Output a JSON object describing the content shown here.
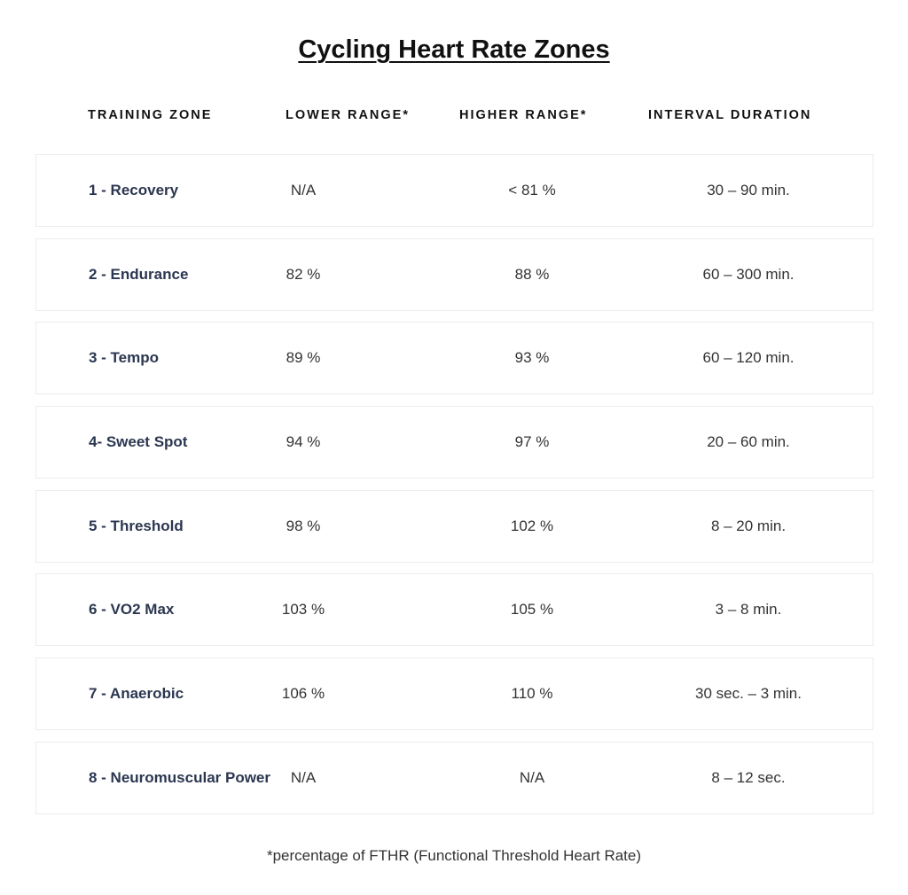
{
  "title": "Cycling Heart Rate Zones",
  "headers": {
    "zone": "TRAINING ZONE",
    "lower": "LOWER RANGE*",
    "higher": "HIGHER RANGE*",
    "interval": "INTERVAL DURATION"
  },
  "rows": [
    {
      "zone": "1 - Recovery",
      "lower": "N/A",
      "higher": "< 81 %",
      "interval": "30 – 90 min."
    },
    {
      "zone": "2 - Endurance",
      "lower": "82 %",
      "higher": "88 %",
      "interval": "60 – 300 min."
    },
    {
      "zone": "3 - Tempo",
      "lower": "89 %",
      "higher": "93 %",
      "interval": "60 – 120 min."
    },
    {
      "zone": "4- Sweet Spot",
      "lower": "94 %",
      "higher": "97 %",
      "interval": "20 – 60 min."
    },
    {
      "zone": "5 - Threshold",
      "lower": "98 %",
      "higher": "102 %",
      "interval": "8 – 20 min."
    },
    {
      "zone": "6 - VO2 Max",
      "lower": "103 %",
      "higher": "105 %",
      "interval": "3 – 8 min."
    },
    {
      "zone": "7 - Anaerobic",
      "lower": "106 %",
      "higher": "110 %",
      "interval": "30 sec. – 3 min."
    },
    {
      "zone": "8 - Neuromuscular Power",
      "lower": "N/A",
      "higher": "N/A",
      "interval": "8 – 12 sec."
    }
  ],
  "footnote": "*percentage of FTHR (Functional Threshold Heart Rate)",
  "colors": {
    "zone_text": "#2b3650",
    "row_border": "#ececec",
    "background": "#ffffff"
  }
}
